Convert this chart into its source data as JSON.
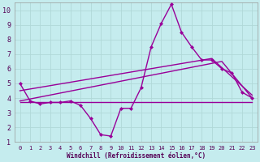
{
  "xlabel": "Windchill (Refroidissement éolien,°C)",
  "background_color": "#c5ecee",
  "grid_color": "#b0d8d8",
  "line_color": "#990099",
  "xlim": [
    -0.5,
    23.5
  ],
  "ylim": [
    1,
    10.5
  ],
  "xticks": [
    0,
    1,
    2,
    3,
    4,
    5,
    6,
    7,
    8,
    9,
    10,
    11,
    12,
    13,
    14,
    15,
    16,
    17,
    18,
    19,
    20,
    21,
    22,
    23
  ],
  "yticks": [
    1,
    2,
    3,
    4,
    5,
    6,
    7,
    8,
    9,
    10
  ],
  "curve_main_x": [
    0,
    1,
    2,
    3,
    4,
    5,
    6,
    7,
    8,
    9,
    10,
    11,
    12,
    13,
    14,
    15,
    16,
    17,
    18,
    19,
    20,
    21,
    22,
    23
  ],
  "curve_main_y": [
    5.0,
    3.8,
    3.6,
    3.7,
    3.7,
    3.8,
    3.5,
    2.6,
    1.5,
    1.4,
    3.3,
    3.3,
    4.7,
    7.5,
    9.1,
    10.4,
    8.5,
    7.5,
    6.6,
    6.6,
    6.0,
    5.7,
    4.4,
    4.0
  ],
  "curve_line1_x": [
    0,
    23
  ],
  "curve_line1_y": [
    3.7,
    3.7
  ],
  "curve_line2_x": [
    0,
    20,
    23
  ],
  "curve_line2_y": [
    3.8,
    6.5,
    4.0
  ],
  "curve_line3_x": [
    0,
    19,
    23
  ],
  "curve_line3_y": [
    4.5,
    6.7,
    4.2
  ],
  "linewidth": 1.0,
  "markersize": 2.5
}
